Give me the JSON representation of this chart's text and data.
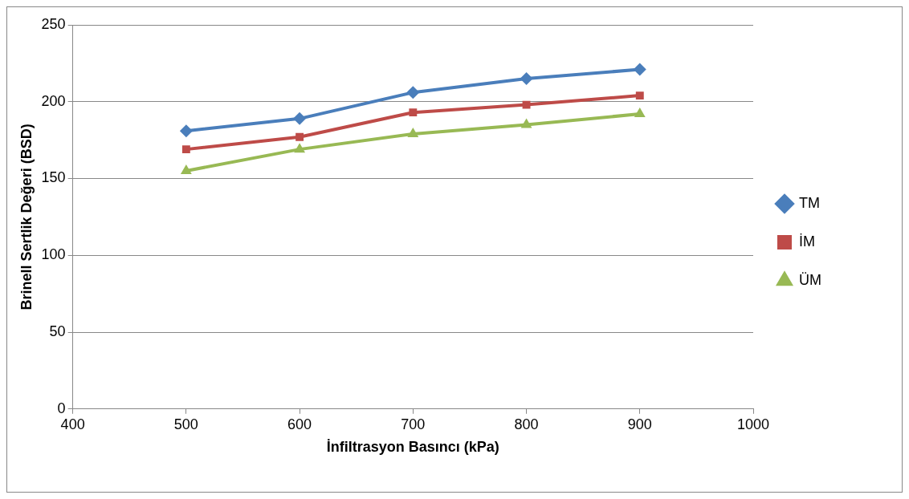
{
  "chart_data": {
    "type": "line",
    "xlabel": "İnfiltrasyon Basıncı (kPa)",
    "ylabel": "Brinell Sertlik Değeri (BSD)",
    "x": [
      500,
      600,
      700,
      800,
      900
    ],
    "xlim": [
      400,
      1000
    ],
    "xticks": [
      400,
      500,
      600,
      700,
      800,
      900,
      1000
    ],
    "ylim": [
      0,
      250
    ],
    "yticks": [
      0,
      50,
      100,
      150,
      200,
      250
    ],
    "grid": "y",
    "legend": "right",
    "line_style": "solid",
    "series": [
      {
        "name": "TM",
        "color": "#4a7ebb",
        "marker": "diamond",
        "values": [
          181,
          189,
          206,
          215,
          221
        ]
      },
      {
        "name": "İM",
        "color": "#be4b48",
        "marker": "square",
        "values": [
          169,
          177,
          193,
          198,
          204
        ]
      },
      {
        "name": "ÜM",
        "color": "#98b954",
        "marker": "triangle",
        "values": [
          155,
          169,
          179,
          185,
          192
        ]
      }
    ]
  }
}
